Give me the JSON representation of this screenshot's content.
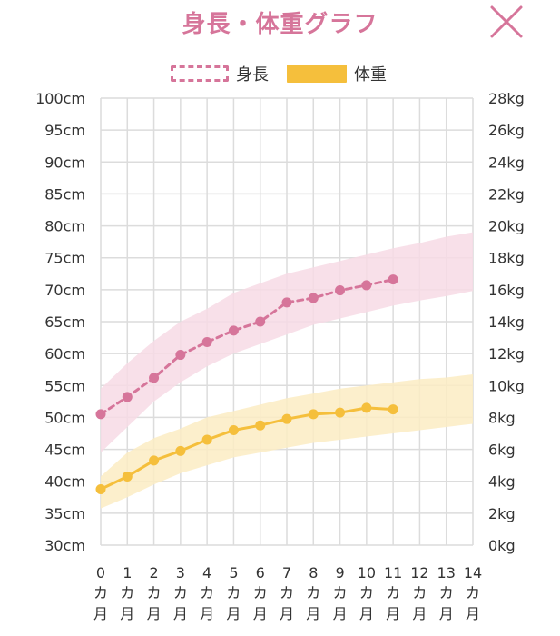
{
  "header": {
    "title": "身長・体重グラフ",
    "close_icon": "close-x-icon"
  },
  "colors": {
    "height": "#d6759a",
    "height_band": "#f7dbe5",
    "weight": "#f5bf3c",
    "weight_band": "#fcecc3",
    "grid": "#dcdcdc",
    "title": "#d6759a"
  },
  "chart_data": {
    "type": "line",
    "legend": {
      "placement": "top-center",
      "items": [
        {
          "label": "身長",
          "style": "dashed"
        },
        {
          "label": "体重",
          "style": "solid"
        }
      ]
    },
    "grid": true,
    "x_categories": [
      "0",
      "1",
      "2",
      "3",
      "4",
      "5",
      "6",
      "7",
      "8",
      "9",
      "10",
      "11",
      "12",
      "13",
      "14"
    ],
    "x_unit_chars": [
      "カ",
      "月"
    ],
    "y_left": {
      "unit": "cm",
      "range": [
        30,
        100
      ],
      "ticks": [
        "100cm",
        "95cm",
        "90cm",
        "85cm",
        "80cm",
        "75cm",
        "70cm",
        "65cm",
        "60cm",
        "55cm",
        "50cm",
        "45cm",
        "40cm",
        "35cm",
        "30cm"
      ]
    },
    "y_right": {
      "unit": "kg",
      "range": [
        0,
        28
      ],
      "ticks": [
        "28kg",
        "26kg",
        "24kg",
        "22kg",
        "20kg",
        "18kg",
        "16kg",
        "14kg",
        "12kg",
        "10kg",
        "8kg",
        "6kg",
        "4kg",
        "2kg",
        "0kg"
      ]
    },
    "series": [
      {
        "name": "身長",
        "axis": "left",
        "style": "dashed",
        "x": [
          0,
          1,
          2,
          3,
          4,
          5,
          6,
          7,
          8,
          9,
          10,
          11
        ],
        "values": [
          50.5,
          53.2,
          56.2,
          59.8,
          61.8,
          63.6,
          65.0,
          68.0,
          68.7,
          69.9,
          70.7,
          71.6
        ]
      },
      {
        "name": "体重",
        "axis": "right",
        "style": "solid",
        "x": [
          0,
          1,
          2,
          3,
          4,
          5,
          6,
          7,
          8,
          9,
          10,
          11
        ],
        "values": [
          3.5,
          4.3,
          5.3,
          5.9,
          6.6,
          7.2,
          7.5,
          7.9,
          8.2,
          8.3,
          8.6,
          8.5
        ]
      }
    ],
    "reference_bands": [
      {
        "series": "身長",
        "axis": "left",
        "x": [
          0,
          1,
          2,
          3,
          4,
          5,
          6,
          7,
          8,
          9,
          10,
          11,
          12,
          13,
          14
        ],
        "lower": [
          44.5,
          48.5,
          52.5,
          55.5,
          58.0,
          60.0,
          61.5,
          63.0,
          64.5,
          65.5,
          66.5,
          67.5,
          68.3,
          69.0,
          69.8
        ],
        "upper": [
          54.5,
          58.5,
          62.0,
          65.0,
          67.0,
          69.5,
          71.0,
          72.5,
          73.5,
          74.5,
          75.5,
          76.5,
          77.3,
          78.3,
          79.0
        ]
      },
      {
        "series": "体重",
        "axis": "right",
        "x": [
          0,
          1,
          2,
          3,
          4,
          5,
          6,
          7,
          8,
          9,
          10,
          11,
          12,
          13,
          14
        ],
        "lower": [
          2.3,
          3.0,
          3.8,
          4.5,
          5.0,
          5.5,
          5.8,
          6.1,
          6.4,
          6.6,
          6.8,
          7.0,
          7.2,
          7.4,
          7.6
        ],
        "upper": [
          4.3,
          5.8,
          6.7,
          7.3,
          8.0,
          8.4,
          8.8,
          9.2,
          9.5,
          9.8,
          10.0,
          10.2,
          10.4,
          10.5,
          10.7
        ]
      }
    ]
  }
}
